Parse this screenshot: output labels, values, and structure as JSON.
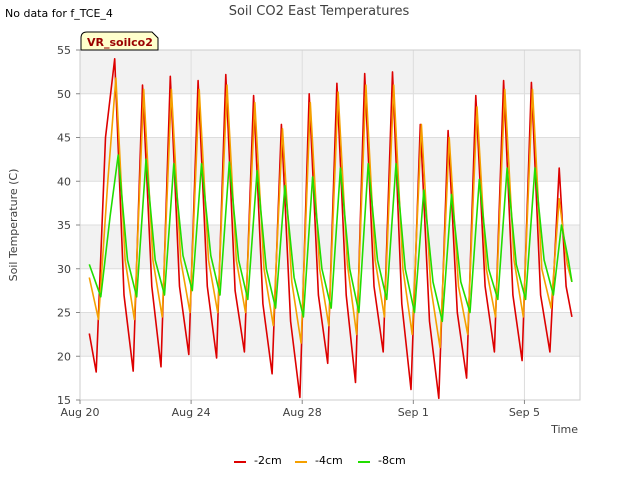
{
  "note": "No data for f_TCE_4",
  "badge": "VR_soilco2",
  "chart_data": {
    "type": "line",
    "title": "Soil CO2 East Temperatures",
    "xlabel": "Time",
    "ylabel": "Soil Temperature (C)",
    "ylim": [
      15,
      55
    ],
    "yticks": [
      15,
      20,
      25,
      30,
      35,
      40,
      45,
      50,
      55
    ],
    "xlim": [
      "2023-08-20",
      "2023-09-07"
    ],
    "xticks": [
      {
        "date": "2023-08-20",
        "label": "Aug 20"
      },
      {
        "date": "2023-08-24",
        "label": "Aug 24"
      },
      {
        "date": "2023-08-28",
        "label": "Aug 28"
      },
      {
        "date": "2023-09-01",
        "label": "Sep 1"
      },
      {
        "date": "2023-09-05",
        "label": "Sep 5"
      }
    ],
    "grid": true,
    "legend_position": "bottom-center",
    "series": [
      {
        "name": "-2cm",
        "color": "#dd0000",
        "points": [
          [
            "2023-08-20 08:00",
            22.6
          ],
          [
            "2023-08-20 14:00",
            18.2
          ],
          [
            "2023-08-20 22:00",
            45.0
          ],
          [
            "2023-08-21 06:00",
            54.0
          ],
          [
            "2023-08-21 14:00",
            27.0
          ],
          [
            "2023-08-21 22:00",
            18.3
          ],
          [
            "2023-08-22 06:00",
            51.0
          ],
          [
            "2023-08-22 14:00",
            28.0
          ],
          [
            "2023-08-22 22:00",
            18.8
          ],
          [
            "2023-08-23 06:00",
            52.0
          ],
          [
            "2023-08-23 14:00",
            28.0
          ],
          [
            "2023-08-23 22:00",
            20.2
          ],
          [
            "2023-08-24 06:00",
            51.5
          ],
          [
            "2023-08-24 14:00",
            28.0
          ],
          [
            "2023-08-24 22:00",
            19.8
          ],
          [
            "2023-08-25 06:00",
            52.2
          ],
          [
            "2023-08-25 14:00",
            27.5
          ],
          [
            "2023-08-25 22:00",
            20.5
          ],
          [
            "2023-08-26 06:00",
            49.8
          ],
          [
            "2023-08-26 14:00",
            26.0
          ],
          [
            "2023-08-26 22:00",
            18.0
          ],
          [
            "2023-08-27 06:00",
            46.5
          ],
          [
            "2023-08-27 14:00",
            24.0
          ],
          [
            "2023-08-27 22:00",
            15.3
          ],
          [
            "2023-08-28 06:00",
            50.0
          ],
          [
            "2023-08-28 14:00",
            27.0
          ],
          [
            "2023-08-28 22:00",
            19.2
          ],
          [
            "2023-08-29 06:00",
            51.2
          ],
          [
            "2023-08-29 14:00",
            27.0
          ],
          [
            "2023-08-29 22:00",
            17.0
          ],
          [
            "2023-08-30 06:00",
            52.3
          ],
          [
            "2023-08-30 14:00",
            28.0
          ],
          [
            "2023-08-30 22:00",
            20.5
          ],
          [
            "2023-08-31 06:00",
            52.5
          ],
          [
            "2023-08-31 14:00",
            26.0
          ],
          [
            "2023-08-31 22:00",
            16.2
          ],
          [
            "2023-09-01 06:00",
            46.5
          ],
          [
            "2023-09-01 14:00",
            24.0
          ],
          [
            "2023-09-01 22:00",
            15.2
          ],
          [
            "2023-09-02 06:00",
            45.8
          ],
          [
            "2023-09-02 14:00",
            25.0
          ],
          [
            "2023-09-02 22:00",
            17.5
          ],
          [
            "2023-09-03 06:00",
            49.8
          ],
          [
            "2023-09-03 14:00",
            28.0
          ],
          [
            "2023-09-03 22:00",
            20.5
          ],
          [
            "2023-09-04 06:00",
            51.5
          ],
          [
            "2023-09-04 14:00",
            27.0
          ],
          [
            "2023-09-04 22:00",
            19.5
          ],
          [
            "2023-09-05 06:00",
            51.3
          ],
          [
            "2023-09-05 14:00",
            27.0
          ],
          [
            "2023-09-05 22:00",
            20.5
          ],
          [
            "2023-09-06 06:00",
            41.5
          ],
          [
            "2023-09-06 12:00",
            28.0
          ],
          [
            "2023-09-06 17:00",
            24.5
          ]
        ]
      },
      {
        "name": "-4cm",
        "color": "#f5a000",
        "points": [
          [
            "2023-08-20 08:00",
            29.0
          ],
          [
            "2023-08-20 16:00",
            24.2
          ],
          [
            "2023-08-21 00:00",
            40.0
          ],
          [
            "2023-08-21 07:00",
            51.8
          ],
          [
            "2023-08-21 15:00",
            31.0
          ],
          [
            "2023-08-21 23:00",
            24.2
          ],
          [
            "2023-08-22 07:00",
            50.5
          ],
          [
            "2023-08-22 15:00",
            31.0
          ],
          [
            "2023-08-22 23:00",
            24.5
          ],
          [
            "2023-08-23 07:00",
            50.5
          ],
          [
            "2023-08-23 15:00",
            31.0
          ],
          [
            "2023-08-23 23:00",
            25.0
          ],
          [
            "2023-08-24 07:00",
            50.5
          ],
          [
            "2023-08-24 15:00",
            31.0
          ],
          [
            "2023-08-24 23:00",
            25.0
          ],
          [
            "2023-08-25 07:00",
            51.0
          ],
          [
            "2023-08-25 15:00",
            31.0
          ],
          [
            "2023-08-25 23:00",
            25.0
          ],
          [
            "2023-08-26 07:00",
            49.0
          ],
          [
            "2023-08-26 15:00",
            30.0
          ],
          [
            "2023-08-26 23:00",
            23.5
          ],
          [
            "2023-08-27 07:00",
            46.0
          ],
          [
            "2023-08-27 15:00",
            28.5
          ],
          [
            "2023-08-27 23:00",
            21.5
          ],
          [
            "2023-08-28 07:00",
            49.0
          ],
          [
            "2023-08-28 15:00",
            30.0
          ],
          [
            "2023-08-28 23:00",
            23.5
          ],
          [
            "2023-08-29 07:00",
            50.2
          ],
          [
            "2023-08-29 15:00",
            30.5
          ],
          [
            "2023-08-29 23:00",
            22.5
          ],
          [
            "2023-08-30 07:00",
            51.0
          ],
          [
            "2023-08-30 15:00",
            31.0
          ],
          [
            "2023-08-30 23:00",
            24.5
          ],
          [
            "2023-08-31 07:00",
            51.0
          ],
          [
            "2023-08-31 15:00",
            30.0
          ],
          [
            "2023-08-31 23:00",
            22.5
          ],
          [
            "2023-09-01 07:00",
            46.5
          ],
          [
            "2023-09-01 15:00",
            28.0
          ],
          [
            "2023-09-01 23:00",
            21.0
          ],
          [
            "2023-09-02 07:00",
            45.0
          ],
          [
            "2023-09-02 15:00",
            28.0
          ],
          [
            "2023-09-02 23:00",
            22.5
          ],
          [
            "2023-09-03 07:00",
            48.5
          ],
          [
            "2023-09-03 15:00",
            30.0
          ],
          [
            "2023-09-03 23:00",
            24.5
          ],
          [
            "2023-09-04 07:00",
            50.5
          ],
          [
            "2023-09-04 15:00",
            31.0
          ],
          [
            "2023-09-04 23:00",
            24.5
          ],
          [
            "2023-09-05 07:00",
            50.5
          ],
          [
            "2023-09-05 15:00",
            30.0
          ],
          [
            "2023-09-05 23:00",
            25.5
          ],
          [
            "2023-09-06 06:00",
            38.0
          ],
          [
            "2023-09-06 13:00",
            30.5
          ],
          [
            "2023-09-06 17:00",
            28.5
          ]
        ]
      },
      {
        "name": "-8cm",
        "color": "#22dd00",
        "points": [
          [
            "2023-08-20 08:00",
            30.5
          ],
          [
            "2023-08-20 18:00",
            26.8
          ],
          [
            "2023-08-21 02:00",
            36.0
          ],
          [
            "2023-08-21 09:00",
            43.0
          ],
          [
            "2023-08-21 17:00",
            31.0
          ],
          [
            "2023-08-22 01:00",
            26.8
          ],
          [
            "2023-08-22 09:00",
            42.5
          ],
          [
            "2023-08-22 17:00",
            31.0
          ],
          [
            "2023-08-23 01:00",
            27.0
          ],
          [
            "2023-08-23 09:00",
            42.0
          ],
          [
            "2023-08-23 17:00",
            31.5
          ],
          [
            "2023-08-24 01:00",
            27.5
          ],
          [
            "2023-08-24 09:00",
            42.0
          ],
          [
            "2023-08-24 17:00",
            31.5
          ],
          [
            "2023-08-25 01:00",
            27.0
          ],
          [
            "2023-08-25 09:00",
            42.2
          ],
          [
            "2023-08-25 17:00",
            31.0
          ],
          [
            "2023-08-26 01:00",
            26.5
          ],
          [
            "2023-08-26 09:00",
            41.2
          ],
          [
            "2023-08-26 17:00",
            30.0
          ],
          [
            "2023-08-27 01:00",
            25.5
          ],
          [
            "2023-08-27 09:00",
            39.5
          ],
          [
            "2023-08-27 17:00",
            29.0
          ],
          [
            "2023-08-28 01:00",
            24.5
          ],
          [
            "2023-08-28 09:00",
            40.5
          ],
          [
            "2023-08-28 17:00",
            30.0
          ],
          [
            "2023-08-29 01:00",
            25.5
          ],
          [
            "2023-08-29 09:00",
            41.5
          ],
          [
            "2023-08-29 17:00",
            30.0
          ],
          [
            "2023-08-30 01:00",
            25.0
          ],
          [
            "2023-08-30 09:00",
            42.0
          ],
          [
            "2023-08-30 17:00",
            31.0
          ],
          [
            "2023-08-31 01:00",
            26.5
          ],
          [
            "2023-08-31 09:00",
            42.0
          ],
          [
            "2023-08-31 17:00",
            30.0
          ],
          [
            "2023-09-01 01:00",
            25.0
          ],
          [
            "2023-09-01 09:00",
            39.0
          ],
          [
            "2023-09-01 17:00",
            28.5
          ],
          [
            "2023-09-02 01:00",
            24.0
          ],
          [
            "2023-09-02 09:00",
            38.5
          ],
          [
            "2023-09-02 17:00",
            28.5
          ],
          [
            "2023-09-03 01:00",
            25.0
          ],
          [
            "2023-09-03 09:00",
            40.2
          ],
          [
            "2023-09-03 17:00",
            30.0
          ],
          [
            "2023-09-04 01:00",
            26.5
          ],
          [
            "2023-09-04 09:00",
            41.5
          ],
          [
            "2023-09-04 17:00",
            30.5
          ],
          [
            "2023-09-05 01:00",
            26.5
          ],
          [
            "2023-09-05 09:00",
            41.5
          ],
          [
            "2023-09-05 17:00",
            31.0
          ],
          [
            "2023-09-06 01:00",
            27.0
          ],
          [
            "2023-09-06 08:00",
            35.0
          ],
          [
            "2023-09-06 14:00",
            31.0
          ],
          [
            "2023-09-06 17:00",
            28.5
          ]
        ]
      }
    ]
  }
}
